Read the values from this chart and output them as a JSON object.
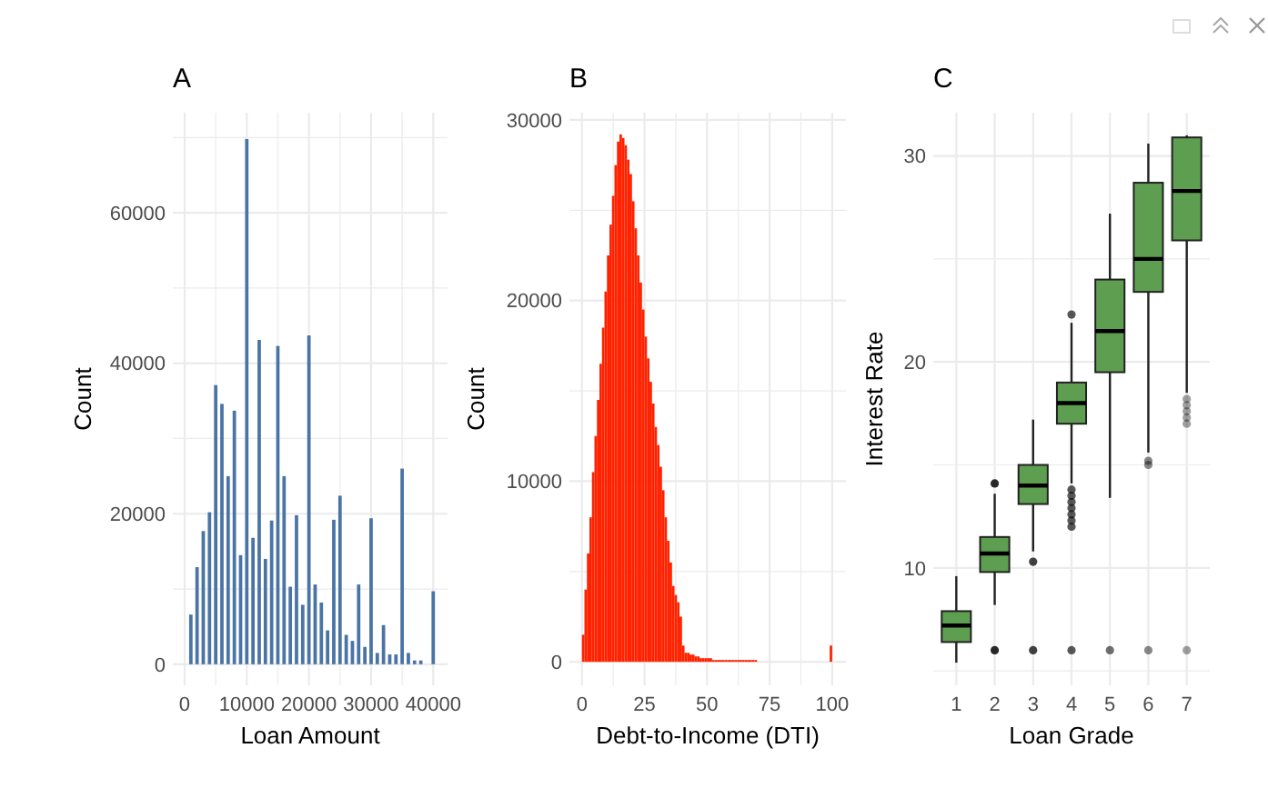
{
  "chart_data": [
    {
      "type": "bar",
      "title": "A",
      "xlabel": "Loan Amount",
      "ylabel": "Count",
      "color": "#4a74a6",
      "grid": true,
      "x": [
        1000,
        2000,
        3000,
        4000,
        5000,
        6000,
        7000,
        8000,
        9000,
        10000,
        11000,
        12000,
        13000,
        14000,
        15000,
        16000,
        17000,
        18000,
        19000,
        20000,
        21000,
        22000,
        23000,
        24000,
        25000,
        26000,
        27000,
        28000,
        29000,
        30000,
        31000,
        32000,
        33000,
        34000,
        35000,
        36000,
        37000,
        38000,
        39000,
        40000
      ],
      "values": [
        6600,
        12900,
        17700,
        20200,
        37100,
        34600,
        25000,
        33700,
        14500,
        69800,
        16800,
        43100,
        14000,
        19100,
        42300,
        25000,
        10300,
        19800,
        7900,
        43700,
        10600,
        8200,
        4500,
        19200,
        22400,
        3900,
        3100,
        10600,
        2300,
        19400,
        1500,
        5200,
        1300,
        1300,
        26000,
        1500,
        500,
        500,
        0,
        9700
      ],
      "xlim": [
        -1900,
        42300
      ],
      "ylim": [
        -2800,
        73300
      ],
      "xticks": [
        0,
        {
          "value": 5000,
          "label": null
        },
        10000,
        {
          "value": 15000,
          "label": null
        },
        20000,
        {
          "value": 25000,
          "label": null
        },
        30000,
        {
          "value": 35000,
          "label": null
        },
        40000
      ],
      "yticks": [
        0,
        {
          "value": 10000,
          "label": null
        },
        20000,
        {
          "value": 30000,
          "label": null
        },
        40000,
        {
          "value": 50000,
          "label": null
        },
        60000,
        {
          "value": 70000,
          "label": null
        }
      ]
    },
    {
      "type": "histogram",
      "title": "B",
      "xlabel": "Debt-to-Income (DTI)",
      "ylabel": "Count",
      "color": "#ff2200",
      "grid": true,
      "bins": [
        0,
        1,
        2,
        3,
        4,
        5,
        6,
        7,
        8,
        9,
        10,
        11,
        12,
        13,
        14,
        15,
        16,
        17,
        18,
        19,
        20,
        21,
        22,
        23,
        24,
        25,
        26,
        27,
        28,
        29,
        30,
        31,
        32,
        33,
        34,
        35,
        36,
        37,
        38,
        39,
        40,
        41,
        42,
        43,
        44,
        45,
        46,
        47,
        48,
        49,
        50,
        51,
        52,
        53,
        54,
        55,
        56,
        57,
        58,
        59,
        60,
        61,
        62,
        63,
        64,
        65,
        66,
        67,
        68,
        69,
        70,
        71,
        72,
        73,
        74,
        75,
        76,
        77,
        78,
        79,
        80,
        81,
        82,
        83,
        84,
        85,
        86,
        87,
        88,
        89,
        90,
        91,
        92,
        93,
        94,
        95,
        96,
        97,
        98,
        99,
        100
      ],
      "values": [
        1500,
        4000,
        6000,
        8000,
        10500,
        12500,
        14500,
        16500,
        18500,
        20500,
        22500,
        24200,
        25800,
        27500,
        28800,
        29200,
        29000,
        28600,
        27800,
        27000,
        25500,
        24000,
        22500,
        21000,
        19500,
        18000,
        16800,
        15500,
        14300,
        13000,
        12000,
        10800,
        9500,
        8000,
        6700,
        5500,
        4200,
        3700,
        3300,
        2500,
        900,
        500,
        500,
        400,
        400,
        300,
        300,
        200,
        200,
        200,
        200,
        200,
        100,
        100,
        100,
        100,
        100,
        100,
        100,
        100,
        100,
        100,
        100,
        100,
        100,
        100,
        100,
        100,
        100,
        100,
        0,
        0,
        0,
        0,
        0,
        0,
        0,
        0,
        0,
        0,
        0,
        0,
        0,
        0,
        0,
        0,
        0,
        0,
        0,
        0,
        0,
        0,
        0,
        0,
        0,
        0,
        0,
        0,
        0,
        900
      ],
      "xlim": [
        -5,
        105.5
      ],
      "ylim": [
        -1300,
        30400
      ],
      "xticks": [
        0,
        {
          "value": 12.5,
          "label": null
        },
        25,
        {
          "value": 37.5,
          "label": null
        },
        50,
        {
          "value": 62.5,
          "label": null
        },
        75,
        {
          "value": 87.5,
          "label": null
        },
        100
      ],
      "yticks": [
        0,
        {
          "value": 5000,
          "label": null
        },
        10000,
        {
          "value": 15000,
          "label": null
        },
        20000,
        {
          "value": 25000,
          "label": null
        },
        30000
      ]
    },
    {
      "type": "box",
      "title": "C",
      "xlabel": "Loan Grade",
      "ylabel": "Interest Rate",
      "color": "#5e9e50",
      "grid": true,
      "categories": [
        "1",
        "2",
        "3",
        "4",
        "5",
        "6",
        "7"
      ],
      "boxes": [
        {
          "low": 5.4,
          "q1": 6.4,
          "median": 7.2,
          "q3": 7.9,
          "high": 9.6
        },
        {
          "low": 8.2,
          "q1": 9.8,
          "median": 10.7,
          "q3": 11.5,
          "high": 13.6,
          "outliers": [
            14.1,
            6.0
          ]
        },
        {
          "low": 10.8,
          "q1": 13.1,
          "median": 14.0,
          "q3": 15.0,
          "high": 17.2,
          "outliers": [
            10.3,
            6.0
          ]
        },
        {
          "low": 14.1,
          "q1": 17.0,
          "median": 18.0,
          "q3": 19.0,
          "high": 21.9,
          "outliers": [
            22.3,
            13.8,
            13.5,
            13.2,
            12.9,
            12.6,
            12.3,
            12.0,
            6.0
          ]
        },
        {
          "low": 13.4,
          "q1": 19.5,
          "median": 21.5,
          "q3": 24.0,
          "high": 27.2,
          "outliers": [
            6.0
          ]
        },
        {
          "low": 15.6,
          "q1": 23.4,
          "median": 25.0,
          "q3": 28.7,
          "high": 30.6,
          "outliers": [
            15.2,
            15.0,
            6.0
          ]
        },
        {
          "low": 18.5,
          "q1": 25.9,
          "median": 28.3,
          "q3": 30.9,
          "high": 31.0,
          "outliers": [
            18.2,
            17.9,
            17.6,
            17.3,
            17.0,
            6.0
          ]
        }
      ],
      "ylim": [
        4.3,
        32.1
      ],
      "yticks": [
        {
          "value": 5,
          "label": null
        },
        10,
        {
          "value": 15,
          "label": null
        },
        20,
        {
          "value": 25,
          "label": null
        },
        30
      ]
    }
  ]
}
